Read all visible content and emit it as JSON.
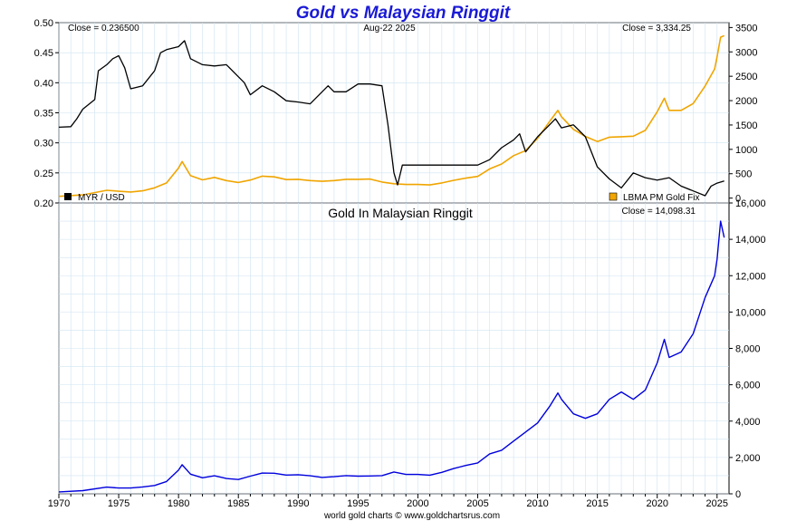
{
  "title": "Gold vs Malaysian Ringgit",
  "title_color": "#1a1ad6",
  "footer": "world gold charts © www.goldchartsrus.com",
  "chart_data": [
    {
      "type": "line",
      "panel": "top",
      "date_label": "Aug-22  2025",
      "left_close": "Close = 0.236500",
      "right_close": "Close = 3,334.25",
      "left_axis": {
        "ylim": [
          0.2,
          0.5
        ],
        "ticks": [
          "0.50",
          "0.45",
          "0.40",
          "0.35",
          "0.30",
          "0.25",
          "0.20"
        ],
        "tick_values": [
          0.5,
          0.45,
          0.4,
          0.35,
          0.3,
          0.25,
          0.2
        ]
      },
      "right_axis": {
        "ylim": [
          -100,
          3600
        ],
        "ticks": [
          "3500",
          "3000",
          "2500",
          "2000",
          "1500",
          "1000",
          "500",
          "0"
        ],
        "tick_values": [
          3500,
          3000,
          2500,
          2000,
          1500,
          1000,
          500,
          0
        ]
      },
      "grid": true,
      "series": [
        {
          "name": "MYR / USD",
          "axis": "left",
          "color": "#000000",
          "points": [
            [
              1970.0,
              0.326
            ],
            [
              1971.0,
              0.327
            ],
            [
              1971.5,
              0.34
            ],
            [
              1972.0,
              0.356
            ],
            [
              1973.0,
              0.372
            ],
            [
              1973.3,
              0.42
            ],
            [
              1974.0,
              0.43
            ],
            [
              1974.5,
              0.44
            ],
            [
              1975.0,
              0.445
            ],
            [
              1975.5,
              0.425
            ],
            [
              1976.0,
              0.39
            ],
            [
              1977.0,
              0.395
            ],
            [
              1978.0,
              0.42
            ],
            [
              1978.5,
              0.45
            ],
            [
              1979.0,
              0.455
            ],
            [
              1980.0,
              0.46
            ],
            [
              1980.5,
              0.47
            ],
            [
              1981.0,
              0.44
            ],
            [
              1982.0,
              0.43
            ],
            [
              1983.0,
              0.428
            ],
            [
              1984.0,
              0.43
            ],
            [
              1985.0,
              0.41
            ],
            [
              1985.5,
              0.4
            ],
            [
              1986.0,
              0.38
            ],
            [
              1987.0,
              0.395
            ],
            [
              1988.0,
              0.385
            ],
            [
              1989.0,
              0.37
            ],
            [
              1990.0,
              0.368
            ],
            [
              1991.0,
              0.365
            ],
            [
              1992.0,
              0.385
            ],
            [
              1992.5,
              0.395
            ],
            [
              1993.0,
              0.385
            ],
            [
              1994.0,
              0.385
            ],
            [
              1995.0,
              0.398
            ],
            [
              1996.0,
              0.398
            ],
            [
              1997.0,
              0.395
            ],
            [
              1997.5,
              0.33
            ],
            [
              1998.0,
              0.25
            ],
            [
              1998.3,
              0.23
            ],
            [
              1998.7,
              0.263
            ],
            [
              2000.0,
              0.263
            ],
            [
              2003.0,
              0.263
            ],
            [
              2005.0,
              0.263
            ],
            [
              2006.0,
              0.272
            ],
            [
              2007.0,
              0.292
            ],
            [
              2008.0,
              0.305
            ],
            [
              2008.5,
              0.315
            ],
            [
              2009.0,
              0.285
            ],
            [
              2010.0,
              0.31
            ],
            [
              2011.0,
              0.33
            ],
            [
              2011.5,
              0.34
            ],
            [
              2012.0,
              0.325
            ],
            [
              2013.0,
              0.33
            ],
            [
              2014.0,
              0.31
            ],
            [
              2015.0,
              0.26
            ],
            [
              2016.0,
              0.24
            ],
            [
              2017.0,
              0.225
            ],
            [
              2018.0,
              0.25
            ],
            [
              2019.0,
              0.242
            ],
            [
              2020.0,
              0.238
            ],
            [
              2021.0,
              0.242
            ],
            [
              2022.0,
              0.228
            ],
            [
              2023.0,
              0.22
            ],
            [
              2024.0,
              0.212
            ],
            [
              2024.5,
              0.228
            ],
            [
              2025.0,
              0.233
            ],
            [
              2025.6,
              0.2365
            ]
          ]
        },
        {
          "name": "LBMA PM Gold Fix",
          "axis": "right",
          "color": "#f0a500",
          "points": [
            [
              1970.0,
              35
            ],
            [
              1972.0,
              65
            ],
            [
              1974.0,
              160
            ],
            [
              1975.0,
              140
            ],
            [
              1976.0,
              125
            ],
            [
              1977.0,
              150
            ],
            [
              1978.0,
              210
            ],
            [
              1979.0,
              310
            ],
            [
              1980.0,
              615
            ],
            [
              1980.3,
              750
            ],
            [
              1981.0,
              460
            ],
            [
              1982.0,
              375
            ],
            [
              1983.0,
              425
            ],
            [
              1984.0,
              360
            ],
            [
              1985.0,
              320
            ],
            [
              1986.0,
              370
            ],
            [
              1987.0,
              450
            ],
            [
              1988.0,
              435
            ],
            [
              1989.0,
              380
            ],
            [
              1990.0,
              385
            ],
            [
              1991.0,
              360
            ],
            [
              1992.0,
              345
            ],
            [
              1993.0,
              360
            ],
            [
              1994.0,
              385
            ],
            [
              1995.0,
              385
            ],
            [
              1996.0,
              390
            ],
            [
              1997.0,
              330
            ],
            [
              1998.0,
              295
            ],
            [
              1999.0,
              280
            ],
            [
              2000.0,
              280
            ],
            [
              2001.0,
              270
            ],
            [
              2002.0,
              310
            ],
            [
              2003.0,
              365
            ],
            [
              2004.0,
              410
            ],
            [
              2005.0,
              445
            ],
            [
              2006.0,
              600
            ],
            [
              2007.0,
              700
            ],
            [
              2008.0,
              870
            ],
            [
              2009.0,
              975
            ],
            [
              2010.0,
              1225
            ],
            [
              2011.0,
              1570
            ],
            [
              2011.7,
              1800
            ],
            [
              2012.0,
              1670
            ],
            [
              2013.0,
              1410
            ],
            [
              2014.0,
              1265
            ],
            [
              2015.0,
              1160
            ],
            [
              2016.0,
              1250
            ],
            [
              2017.0,
              1260
            ],
            [
              2018.0,
              1270
            ],
            [
              2019.0,
              1390
            ],
            [
              2020.0,
              1770
            ],
            [
              2020.6,
              2050
            ],
            [
              2021.0,
              1800
            ],
            [
              2022.0,
              1800
            ],
            [
              2023.0,
              1940
            ],
            [
              2024.0,
              2300
            ],
            [
              2024.8,
              2650
            ],
            [
              2025.0,
              2900
            ],
            [
              2025.3,
              3300
            ],
            [
              2025.6,
              3334
            ]
          ]
        }
      ]
    },
    {
      "type": "line",
      "panel": "bottom",
      "title": "Gold In Malaysian Ringgit",
      "right_close": "Close = 14,098.31",
      "x_ticks": [
        "1970",
        "1975",
        "1980",
        "1985",
        "1990",
        "1995",
        "2000",
        "2005",
        "2010",
        "2015",
        "2020",
        "2025"
      ],
      "x_tick_values": [
        1970,
        1975,
        1980,
        1985,
        1990,
        1995,
        2000,
        2005,
        2010,
        2015,
        2020,
        2025
      ],
      "xlim": [
        1970,
        2026
      ],
      "right_axis": {
        "ylim": [
          0,
          16000
        ],
        "ticks": [
          "16,000",
          "14,000",
          "12,000",
          "10,000",
          "8,000",
          "6,000",
          "4,000",
          "2,000",
          "0"
        ],
        "tick_values": [
          16000,
          14000,
          12000,
          10000,
          8000,
          6000,
          4000,
          2000,
          0
        ]
      },
      "grid": true,
      "series": [
        {
          "name": "",
          "axis": "right",
          "color": "#0000dd",
          "points": [
            [
              1970.0,
              105
            ],
            [
              1972.0,
              175
            ],
            [
              1974.0,
              370
            ],
            [
              1975.0,
              320
            ],
            [
              1976.0,
              320
            ],
            [
              1977.0,
              380
            ],
            [
              1978.0,
              460
            ],
            [
              1979.0,
              680
            ],
            [
              1980.0,
              1300
            ],
            [
              1980.3,
              1600
            ],
            [
              1981.0,
              1080
            ],
            [
              1982.0,
              880
            ],
            [
              1983.0,
              990
            ],
            [
              1984.0,
              840
            ],
            [
              1985.0,
              790
            ],
            [
              1986.0,
              970
            ],
            [
              1987.0,
              1140
            ],
            [
              1988.0,
              1130
            ],
            [
              1989.0,
              1030
            ],
            [
              1990.0,
              1050
            ],
            [
              1991.0,
              990
            ],
            [
              1992.0,
              900
            ],
            [
              1993.0,
              940
            ],
            [
              1994.0,
              1000
            ],
            [
              1995.0,
              970
            ],
            [
              1996.0,
              980
            ],
            [
              1997.0,
              1000
            ],
            [
              1998.0,
              1200
            ],
            [
              1999.0,
              1065
            ],
            [
              2000.0,
              1065
            ],
            [
              2001.0,
              1025
            ],
            [
              2002.0,
              1180
            ],
            [
              2003.0,
              1390
            ],
            [
              2004.0,
              1560
            ],
            [
              2005.0,
              1700
            ],
            [
              2006.0,
              2200
            ],
            [
              2007.0,
              2400
            ],
            [
              2008.0,
              2900
            ],
            [
              2009.0,
              3400
            ],
            [
              2010.0,
              3900
            ],
            [
              2011.0,
              4800
            ],
            [
              2011.7,
              5550
            ],
            [
              2012.0,
              5200
            ],
            [
              2013.0,
              4400
            ],
            [
              2014.0,
              4150
            ],
            [
              2015.0,
              4400
            ],
            [
              2016.0,
              5200
            ],
            [
              2017.0,
              5600
            ],
            [
              2018.0,
              5200
            ],
            [
              2019.0,
              5700
            ],
            [
              2020.0,
              7200
            ],
            [
              2020.6,
              8500
            ],
            [
              2021.0,
              7500
            ],
            [
              2022.0,
              7800
            ],
            [
              2023.0,
              8800
            ],
            [
              2024.0,
              10800
            ],
            [
              2024.8,
              12000
            ],
            [
              2025.0,
              12900
            ],
            [
              2025.3,
              15000
            ],
            [
              2025.6,
              14098
            ]
          ]
        }
      ]
    }
  ]
}
